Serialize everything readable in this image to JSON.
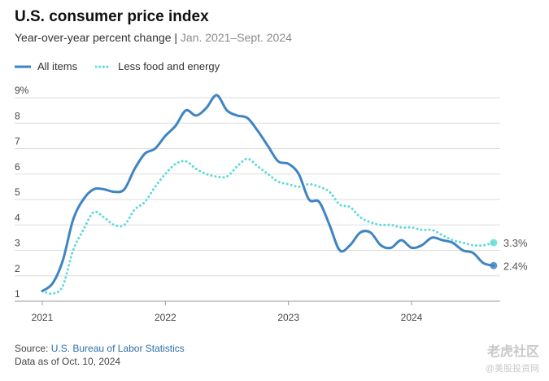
{
  "header": {
    "title": "U.S. consumer price index",
    "subtitle_main": "Year-over-year percent change | ",
    "subtitle_range": "Jan. 2021–Sept. 2024"
  },
  "footer": {
    "source_prefix": "Source: ",
    "source_link": "U.S. Bureau of Labor Statistics",
    "data_as_of": "Data as of Oct. 10, 2024"
  },
  "watermark": {
    "text": "老虎社区",
    "subtext": "@美股投资网"
  },
  "colors": {
    "all_items": "#3f84c3",
    "core": "#62dada",
    "grid": "#dddddd",
    "axis": "#999999"
  },
  "chart_data": {
    "type": "line",
    "title": "U.S. consumer price index",
    "subtitle": "Year-over-year percent change | Jan. 2021–Sept. 2024",
    "x": [
      "2021-01",
      "2021-02",
      "2021-03",
      "2021-04",
      "2021-05",
      "2021-06",
      "2021-07",
      "2021-08",
      "2021-09",
      "2021-10",
      "2021-11",
      "2021-12",
      "2022-01",
      "2022-02",
      "2022-03",
      "2022-04",
      "2022-05",
      "2022-06",
      "2022-07",
      "2022-08",
      "2022-09",
      "2022-10",
      "2022-11",
      "2022-12",
      "2023-01",
      "2023-02",
      "2023-03",
      "2023-04",
      "2023-05",
      "2023-06",
      "2023-07",
      "2023-08",
      "2023-09",
      "2023-10",
      "2023-11",
      "2023-12",
      "2024-01",
      "2024-02",
      "2024-03",
      "2024-04",
      "2024-05",
      "2024-06",
      "2024-07",
      "2024-08",
      "2024-09"
    ],
    "xticks": [
      "2021",
      "2022",
      "2023",
      "2024"
    ],
    "yticks": [
      "1",
      "2",
      "3",
      "4",
      "5",
      "6",
      "7",
      "8",
      "9%"
    ],
    "ylim": [
      1,
      9
    ],
    "grid": true,
    "legend_position": "top-left",
    "series": [
      {
        "name": "All items",
        "style": "solid",
        "values": [
          1.4,
          1.7,
          2.6,
          4.2,
          5.0,
          5.4,
          5.4,
          5.3,
          5.4,
          6.2,
          6.8,
          7.0,
          7.5,
          7.9,
          8.5,
          8.3,
          8.6,
          9.1,
          8.5,
          8.3,
          8.2,
          7.7,
          7.1,
          6.5,
          6.4,
          6.0,
          5.0,
          4.9,
          4.0,
          3.0,
          3.2,
          3.7,
          3.7,
          3.2,
          3.1,
          3.4,
          3.1,
          3.2,
          3.5,
          3.4,
          3.3,
          3.0,
          2.9,
          2.5,
          2.4
        ],
        "end_label": "2.4%"
      },
      {
        "name": "Less food and energy",
        "style": "dotted",
        "values": [
          1.4,
          1.3,
          1.6,
          3.0,
          3.8,
          4.5,
          4.3,
          4.0,
          4.0,
          4.6,
          4.9,
          5.5,
          6.0,
          6.4,
          6.5,
          6.2,
          6.0,
          5.9,
          5.9,
          6.3,
          6.6,
          6.3,
          6.0,
          5.7,
          5.6,
          5.5,
          5.6,
          5.5,
          5.3,
          4.8,
          4.7,
          4.3,
          4.1,
          4.0,
          4.0,
          3.9,
          3.9,
          3.8,
          3.8,
          3.6,
          3.4,
          3.3,
          3.2,
          3.2,
          3.3
        ],
        "end_label": "3.3%"
      }
    ]
  }
}
